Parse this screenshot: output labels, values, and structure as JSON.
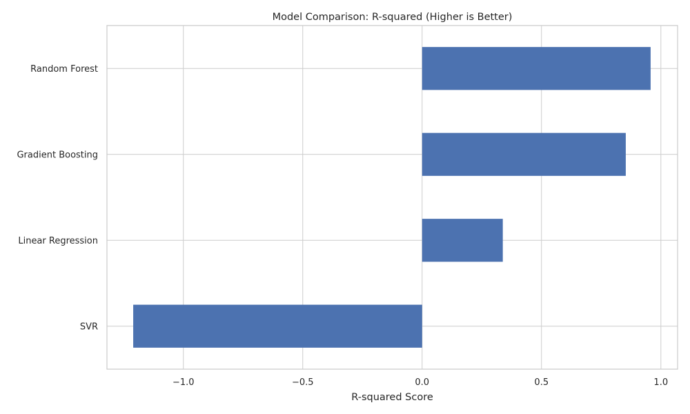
{
  "chart_data": {
    "type": "bar",
    "orientation": "horizontal",
    "title": "Model Comparison: R-squared (Higher is Better)",
    "xlabel": "R-squared Score",
    "ylabel": "",
    "categories": [
      "Random Forest",
      "Gradient Boosting",
      "Linear Regression",
      "SVR"
    ],
    "values": [
      0.957,
      0.853,
      0.338,
      -1.21
    ],
    "xlim": [
      -1.32,
      1.07
    ],
    "xticks": [
      -1.0,
      -0.5,
      0.0,
      0.5,
      1.0
    ],
    "xtick_labels": [
      "−1.0",
      "−0.5",
      "0.0",
      "0.5",
      "1.0"
    ],
    "grid": true,
    "bar_color": "#4c72b0"
  }
}
